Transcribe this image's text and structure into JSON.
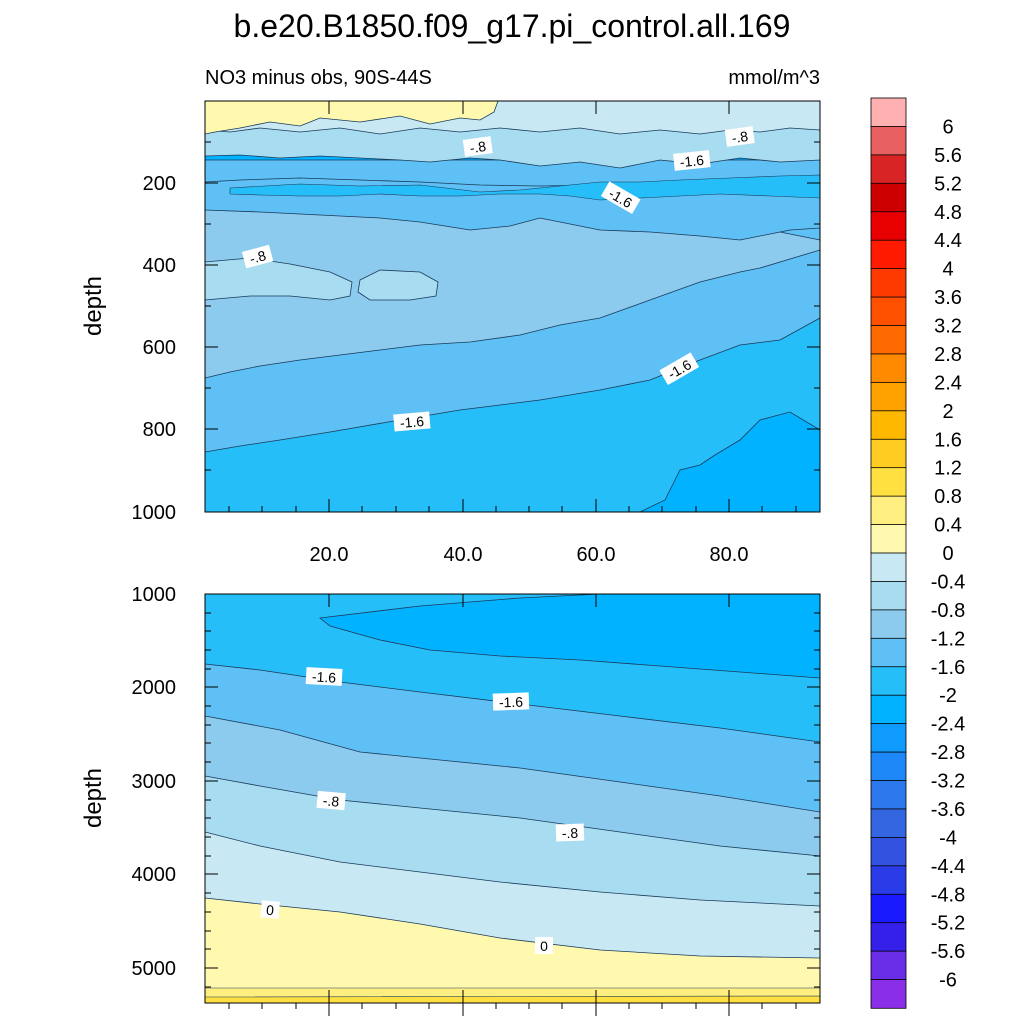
{
  "figure": {
    "title": "b.e20.B1850.f09_g17.pi_control.all.169",
    "subtitle_left": "NO3 minus obs, 90S-44S",
    "subtitle_right": "mmol/m^3"
  },
  "chart_data": [
    {
      "type": "heatmap",
      "panel": "upper",
      "ylabel": "depth",
      "xlabel": "",
      "xlim": [
        0,
        95
      ],
      "ylim": [
        1000,
        0
      ],
      "x_ticks": [
        "20.0",
        "40.0",
        "60.0",
        "80.0"
      ],
      "y_ticks": [
        "200",
        "400",
        "600",
        "800",
        "1000"
      ],
      "contour_labels": [
        "-.8",
        "-.8",
        "-1.6",
        "-1.6",
        "-.8",
        "-1.6",
        "-1.6"
      ]
    },
    {
      "type": "heatmap",
      "panel": "lower",
      "ylabel": "depth",
      "xlabel": "",
      "xlim": [
        0,
        95
      ],
      "ylim": [
        5400,
        1000
      ],
      "y_ticks": [
        "1000",
        "2000",
        "3000",
        "4000",
        "5000"
      ],
      "contour_labels": [
        "-1.6",
        "-1.6",
        "-.8",
        "-.8",
        "0",
        "0"
      ]
    }
  ],
  "colorbar": {
    "labels": [
      "6",
      "5.6",
      "5.2",
      "4.8",
      "4.4",
      "4",
      "3.6",
      "3.2",
      "2.8",
      "2.4",
      "2",
      "1.6",
      "1.2",
      "0.8",
      "0.4",
      "0",
      "-0.4",
      "-0.8",
      "-1.2",
      "-1.6",
      "-2",
      "-2.4",
      "-2.8",
      "-3.2",
      "-3.6",
      "-4",
      "-4.4",
      "-4.8",
      "-5.2",
      "-5.6",
      "-6"
    ],
    "colors": [
      "#ffb0b0",
      "#e86060",
      "#d82424",
      "#cc0000",
      "#e80000",
      "#ff1a00",
      "#ff3a00",
      "#ff5000",
      "#ff6a00",
      "#ff8a00",
      "#ffa200",
      "#ffb800",
      "#ffcc22",
      "#ffe040",
      "#ffee80",
      "#fff9b0",
      "#c8e8f4",
      "#a8dcf0",
      "#8ccaee",
      "#5ec0f4",
      "#26bef8",
      "#00b2ff",
      "#109cff",
      "#1e88f8",
      "#2c78ec",
      "#3466e2",
      "#3452e0",
      "#2a3ce8",
      "#1a1aff",
      "#3420e8",
      "#6a2ee8",
      "#8a2ee8"
    ],
    "levels_fill": {
      "0_0.4": "#fff9b0",
      "0.4_0.8": "#ffee80",
      "m0.4_0": "#c8e8f4",
      "m0.8_m0.4": "#a8dcf0",
      "m1.2_m0.8": "#8ccaee",
      "m1.6_m1.2": "#5ec0f4",
      "m2_m1.6": "#26bef8",
      "m2.4_m2": "#00b2ff"
    }
  }
}
